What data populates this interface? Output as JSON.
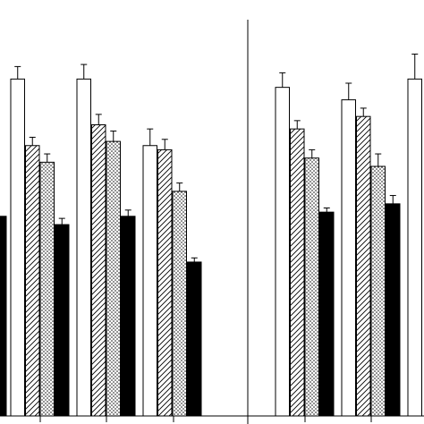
{
  "chart_data": {
    "type": "bar",
    "title": "",
    "xlabel": "",
    "ylabel": "",
    "ylim": [
      0,
      100
    ],
    "grid": false,
    "legend": "none",
    "series": [
      {
        "pattern": "white",
        "fill": "#ffffff"
      },
      {
        "pattern": "diagonal-hatch",
        "fill": "#ffffff"
      },
      {
        "pattern": "dots",
        "fill": "#ffffff"
      },
      {
        "pattern": "black",
        "fill": "#000000"
      }
    ],
    "panels": [
      {
        "groups": [
          {
            "values": [
              null,
              null,
              null,
              48
            ],
            "errors": [
              null,
              null,
              null,
              null
            ]
          },
          {
            "values": [
              81,
              65,
              61,
              46
            ],
            "errors": [
              3,
              2,
              2,
              1.5
            ]
          },
          {
            "values": [
              81,
              70,
              66,
              48
            ],
            "errors": [
              3.5,
              2.5,
              2.5,
              1.5
            ]
          },
          {
            "values": [
              65,
              64,
              54,
              37
            ],
            "errors": [
              4,
              2.5,
              2,
              1
            ]
          }
        ]
      },
      {
        "groups": [
          {
            "values": [
              79,
              69,
              62,
              49
            ],
            "errors": [
              3.5,
              2,
              2,
              1
            ]
          },
          {
            "values": [
              76,
              72,
              60,
              51
            ],
            "errors": [
              4,
              2,
              3,
              2
            ]
          },
          {
            "values": [
              81,
              null,
              null,
              null
            ],
            "errors": [
              6,
              null,
              null,
              null
            ]
          }
        ]
      }
    ]
  }
}
